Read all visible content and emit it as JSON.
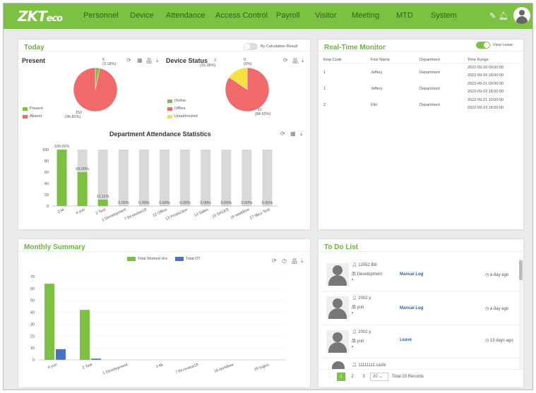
{
  "header": {
    "logo_main": "ZKT",
    "logo_small": "eco",
    "nav": [
      "Personnel",
      "Device",
      "Attendance",
      "Access Control",
      "Payroll",
      "Visitor",
      "Meeting",
      "MTD",
      "System"
    ],
    "icons": [
      "edit-icon",
      "bell-icon",
      "avatar-icon"
    ]
  },
  "today": {
    "title": "Today",
    "toggle_label": "By Calculation Result",
    "present": {
      "title": "Present",
      "legend": [
        "Present",
        "Absent"
      ],
      "label_small_value": "5",
      "label_small_pct": "(3.18%)",
      "label_large_value": "152",
      "label_large_pct": "(96.82%)"
    },
    "device_status": {
      "title": "Device Status",
      "legend": [
        "Online",
        "Offline",
        "Unauthorized"
      ],
      "label_a_value": "2",
      "label_a_pct": "(15.38%)",
      "label_b_value": "0",
      "label_b_pct": "(0%)",
      "label_c_value": "11",
      "label_c_pct": "(84.62%)"
    },
    "dept_title": "Department Attendance Statistics"
  },
  "realtime": {
    "title": "Real-Time Monitor",
    "toggle_label": "View Leave",
    "headers": [
      "Emp Code",
      "First Name",
      "Department",
      "Time Range"
    ],
    "rows": [
      {
        "code": "1",
        "name": "Jeffery",
        "dept": "Department",
        "t1": "2022-09-20 09:00:00",
        "t2": "2022-09-20 18:00:00"
      },
      {
        "code": "1",
        "name": "Jeffery",
        "dept": "Department",
        "t1": "2022-09-21 09:00:00",
        "t2": "2022-09-22 18:00:00"
      },
      {
        "code": "2",
        "name": "Kilo",
        "dept": "Department",
        "t1": "2022-09-21 10:00:00",
        "t2": "2022-09-23 18:00:00"
      }
    ]
  },
  "monthly": {
    "title": "Monthly Summary",
    "legend": [
      "Total Worked Hrs",
      "Total OT"
    ]
  },
  "todo": {
    "title": "To Do List",
    "items": [
      {
        "id": "12052 Bill",
        "dept": "Development",
        "type": "Manual Log",
        "time": "a day ago"
      },
      {
        "id": "2002 y",
        "dept": "yuri",
        "type": "Manual Log",
        "time": "a day ago"
      },
      {
        "id": "2002 y",
        "dept": "yuri",
        "type": "Leave",
        "time": "13 days ago"
      },
      {
        "id": "11111111 cashl",
        "dept": "",
        "type": "",
        "time": ""
      }
    ],
    "pages": [
      "1",
      "2",
      "3"
    ],
    "page_size": "20",
    "total": "Total 23 Records"
  },
  "colors": {
    "green": "#7cc142",
    "red": "#f06a6a",
    "yellow": "#f5e23c",
    "blue": "#4a6fc7",
    "grey": "#d9d9d9"
  },
  "chart_data": [
    {
      "type": "pie",
      "title": "Present",
      "categories": [
        "Present",
        "Absent"
      ],
      "values": [
        5,
        152
      ],
      "percent_labels": [
        "3.18%",
        "96.82%"
      ]
    },
    {
      "type": "pie",
      "title": "Device Status",
      "categories": [
        "Online",
        "Offline",
        "Unauthorized"
      ],
      "values": [
        0,
        11,
        2
      ],
      "percent_labels": [
        "0%",
        "84.62%",
        "15.38%"
      ]
    },
    {
      "type": "bar",
      "title": "Department Attendance Statistics",
      "categories": [
        "3 kk",
        "4 yuri",
        "2 Test",
        "1 Development",
        "7 lhl-review18",
        "12 Office",
        "13 Production",
        "14 Sales",
        "15 SALES",
        "16 workflow",
        "17 Mico Test"
      ],
      "values": [
        100,
        60,
        11.11,
        0,
        0,
        0,
        0,
        0,
        0,
        0,
        0
      ],
      "data_labels": [
        "100.00%",
        "60.00%",
        "11.11%",
        "0.00%",
        "0.00%",
        "0.00%",
        "0.00%",
        "0.00%",
        "0.00%",
        "0.00%",
        "0.00%"
      ],
      "ylim": [
        0,
        100
      ],
      "yticks": [
        0,
        20,
        40,
        60,
        80,
        100
      ]
    },
    {
      "type": "bar",
      "title": "Monthly Summary",
      "categories": [
        "4 yuri",
        "2 Test",
        "1 Development",
        "3 kk",
        "7 lhl-review18",
        "16 workflow",
        "20 tugou"
      ],
      "series": [
        {
          "name": "Total Worked Hrs",
          "values": [
            64,
            42,
            0,
            0,
            0,
            0,
            0
          ]
        },
        {
          "name": "Total OT",
          "values": [
            9,
            1,
            0,
            0,
            0,
            0,
            0
          ]
        }
      ],
      "ylim": [
        0,
        70
      ],
      "yticks": [
        0,
        10,
        20,
        30,
        40,
        50,
        60,
        70
      ]
    }
  ]
}
